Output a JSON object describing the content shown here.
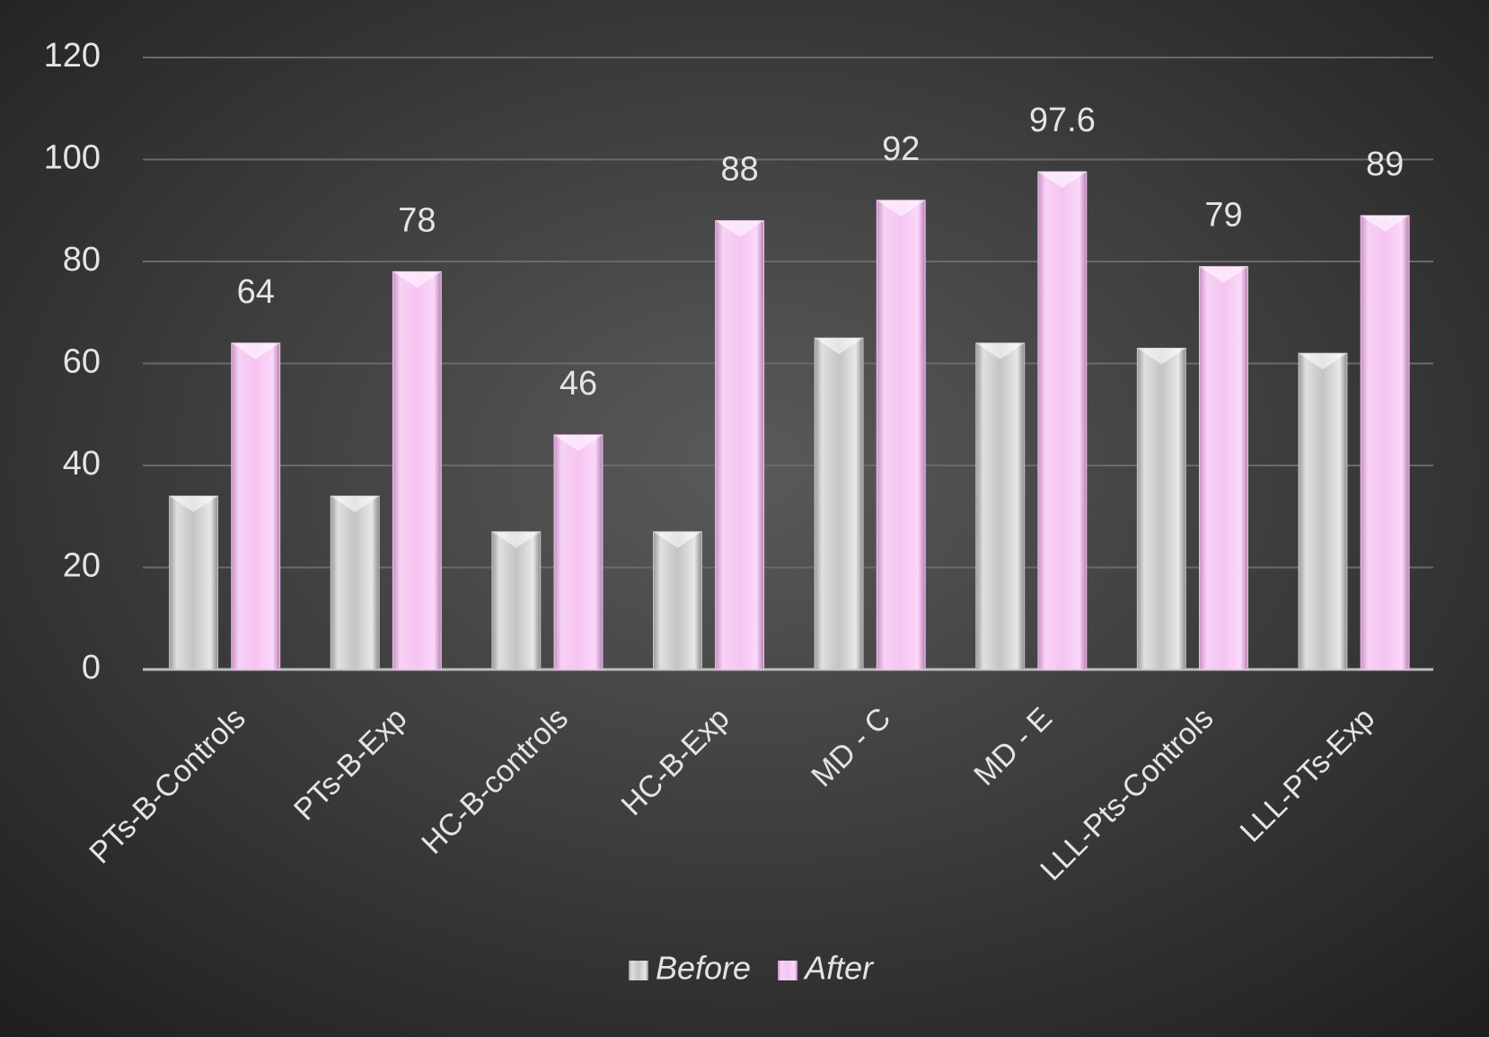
{
  "chart_data": {
    "type": "bar",
    "categories": [
      "PTs-B-Controls",
      "PTs-B-Exp",
      "HC-B-controls",
      "HC-B-Exp",
      "MD - C",
      "MD - E",
      "LLL-Pts-Controls",
      "LLL-PTs-Exp"
    ],
    "series": [
      {
        "name": "Before",
        "color": "#c8c8c8",
        "values": [
          34,
          34,
          27,
          27,
          65,
          64,
          63,
          62
        ],
        "data_labels": false
      },
      {
        "name": "After",
        "color": "#f5c4f2",
        "values": [
          64,
          78,
          46,
          88,
          92,
          97.6,
          79,
          89
        ],
        "data_labels": true
      }
    ],
    "ylim": [
      0,
      120
    ],
    "yticks": [
      0,
      20,
      40,
      60,
      80,
      100,
      120
    ],
    "grid": true,
    "legend": "bottom"
  }
}
